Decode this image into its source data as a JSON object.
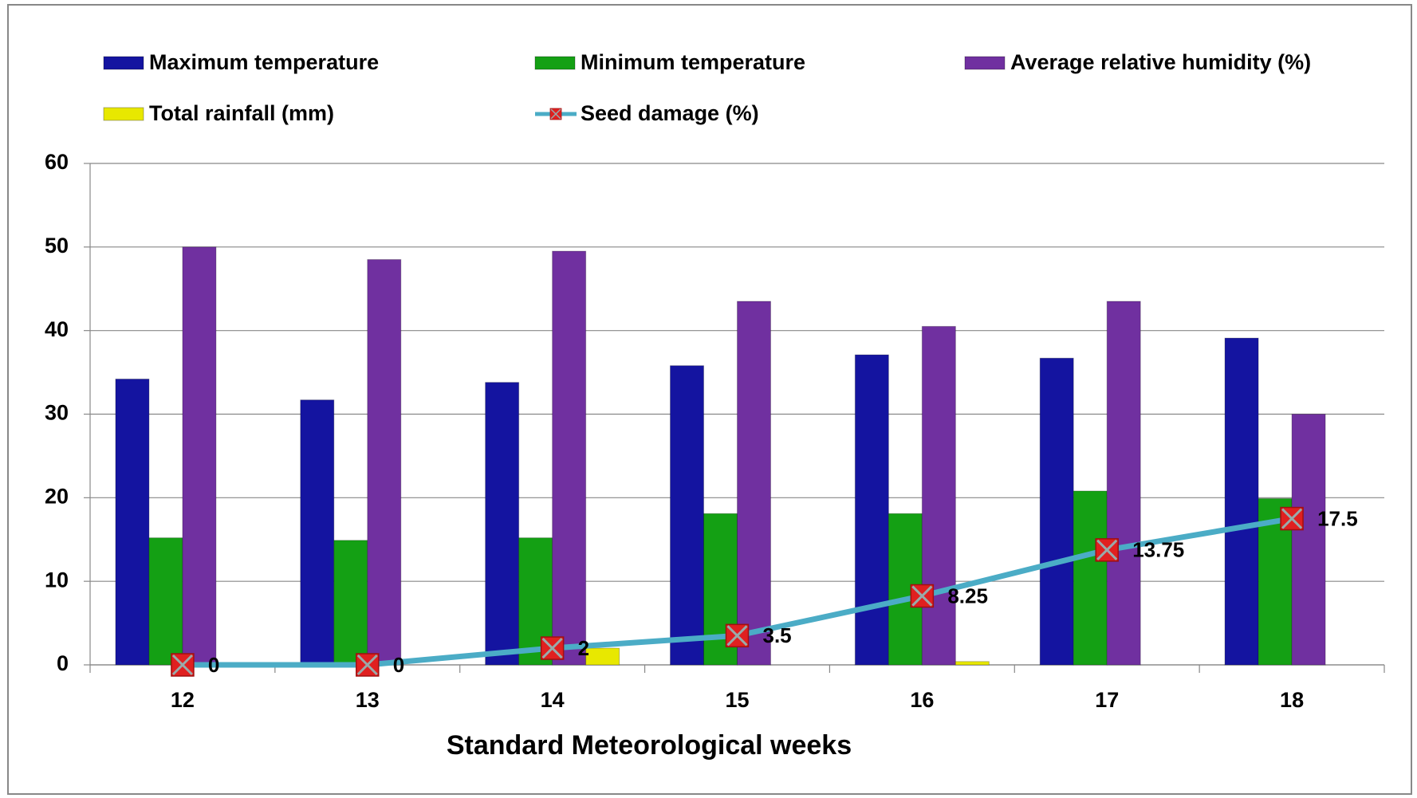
{
  "chart_data": {
    "type": "bar",
    "x_label": "Standard Meteorological weeks",
    "categories": [
      "12",
      "13",
      "14",
      "15",
      "16",
      "17",
      "18"
    ],
    "series": [
      {
        "name": "Maximum temperature",
        "type": "bar",
        "color": "#1414a0",
        "values": [
          34.2,
          31.7,
          33.8,
          35.8,
          37.1,
          36.7,
          39.1
        ]
      },
      {
        "name": "Minimum temperature",
        "type": "bar",
        "color": "#14a014",
        "values": [
          15.2,
          14.9,
          15.2,
          18.1,
          18.1,
          20.8,
          19.9
        ]
      },
      {
        "name": "Average relative humidity (%)",
        "type": "bar",
        "color": "#7030a0",
        "values": [
          50,
          48.5,
          49.5,
          43.5,
          40.5,
          43.5,
          30
        ]
      },
      {
        "name": "Total rainfall (mm)",
        "type": "bar",
        "color": "#e8e800",
        "values": [
          0,
          0,
          2,
          0,
          0.4,
          0,
          0
        ]
      },
      {
        "name": "Seed damage (%)",
        "type": "line",
        "color": "#4bacc6",
        "marker_color": "#e02020",
        "values": [
          0,
          0,
          2,
          3.5,
          8.25,
          13.75,
          17.5
        ]
      }
    ],
    "ylim": [
      0,
      60
    ],
    "yticks": [
      0,
      10,
      20,
      30,
      40,
      50,
      60
    ],
    "grid": true
  }
}
